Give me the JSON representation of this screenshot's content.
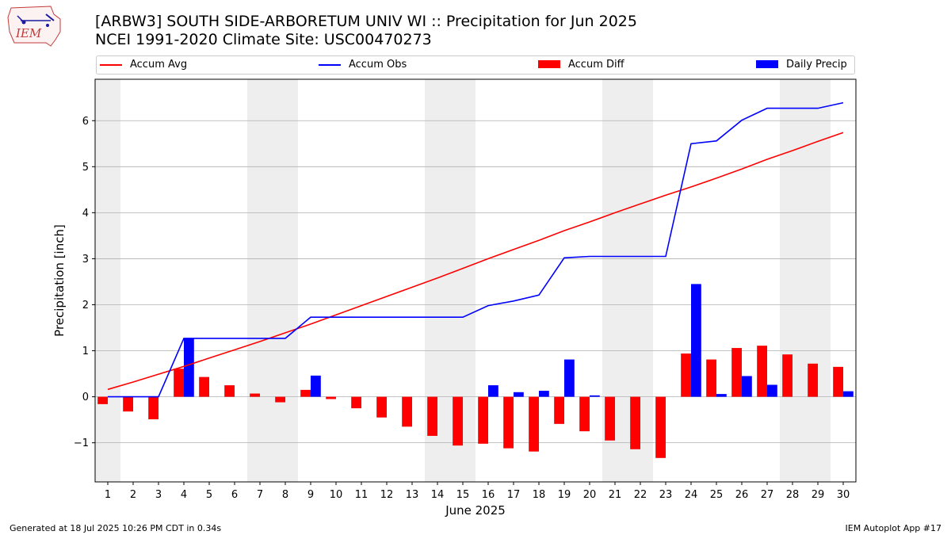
{
  "header": {
    "title": "[ARBW3] SOUTH SIDE-ARBORETUM UNIV WI :: Precipitation for Jun 2025",
    "subtitle": "NCEI 1991-2020 Climate Site: USC00470273",
    "logo_text": "IEM"
  },
  "legend": [
    {
      "label": "Accum Avg",
      "kind": "line",
      "color": "#ff0000"
    },
    {
      "label": "Accum Obs",
      "kind": "line",
      "color": "#0000ff"
    },
    {
      "label": "Accum Diff",
      "kind": "bar",
      "color": "#ff0000"
    },
    {
      "label": "Daily Precip",
      "kind": "bar",
      "color": "#0000ff"
    }
  ],
  "footer": {
    "left": "Generated at 18 Jul 2025 10:26 PM CDT in 0.34s",
    "right": "IEM Autoplot App #17"
  },
  "chart_data": {
    "type": "bar",
    "xlabel": "June 2025",
    "ylabel": "Precipitation [inch]",
    "ylim": [
      -1.85,
      6.9
    ],
    "yticks": [
      -1,
      0,
      1,
      2,
      3,
      4,
      5,
      6
    ],
    "grid": "horizontal",
    "legend_position": "top",
    "x": [
      1,
      2,
      3,
      4,
      5,
      6,
      7,
      8,
      9,
      10,
      11,
      12,
      13,
      14,
      15,
      16,
      17,
      18,
      19,
      20,
      21,
      22,
      23,
      24,
      25,
      26,
      27,
      28,
      29,
      30
    ],
    "weekend_days": [
      1,
      7,
      8,
      14,
      15,
      21,
      22,
      28,
      29
    ],
    "series": [
      {
        "name": "Accum Avg",
        "kind": "line",
        "color": "#ff0000",
        "values": [
          0.16,
          0.32,
          0.49,
          0.66,
          0.84,
          1.02,
          1.2,
          1.39,
          1.58,
          1.78,
          1.98,
          2.18,
          2.38,
          2.58,
          2.79,
          3.0,
          3.2,
          3.4,
          3.61,
          3.8,
          4.0,
          4.19,
          4.38,
          4.56,
          4.75,
          4.95,
          5.16,
          5.35,
          5.55,
          5.74
        ]
      },
      {
        "name": "Accum Obs",
        "kind": "line",
        "color": "#0000ff",
        "values": [
          0.0,
          0.0,
          0.0,
          1.27,
          1.27,
          1.27,
          1.27,
          1.27,
          1.73,
          1.73,
          1.73,
          1.73,
          1.73,
          1.73,
          1.73,
          1.98,
          2.08,
          2.21,
          3.02,
          3.05,
          3.05,
          3.05,
          3.05,
          5.5,
          5.56,
          6.01,
          6.27,
          6.27,
          6.27,
          6.39
        ]
      },
      {
        "name": "Accum Diff",
        "kind": "bar",
        "color": "#ff0000",
        "values": [
          -0.16,
          -0.32,
          -0.49,
          0.61,
          0.43,
          0.25,
          0.07,
          -0.12,
          0.15,
          -0.05,
          -0.25,
          -0.45,
          -0.65,
          -0.85,
          -1.06,
          -1.02,
          -1.12,
          -1.19,
          -0.59,
          -0.75,
          -0.95,
          -1.14,
          -1.33,
          0.94,
          0.81,
          1.06,
          1.11,
          0.92,
          0.72,
          0.65
        ]
      },
      {
        "name": "Daily Precip",
        "kind": "bar",
        "color": "#0000ff",
        "values": [
          0,
          0,
          0,
          1.27,
          0,
          0,
          0,
          0,
          0.46,
          0,
          0,
          0,
          0,
          0,
          0,
          0.25,
          0.1,
          0.13,
          0.81,
          0.03,
          0,
          0,
          0,
          2.45,
          0.06,
          0.45,
          0.26,
          0,
          0,
          0.12
        ]
      }
    ]
  }
}
